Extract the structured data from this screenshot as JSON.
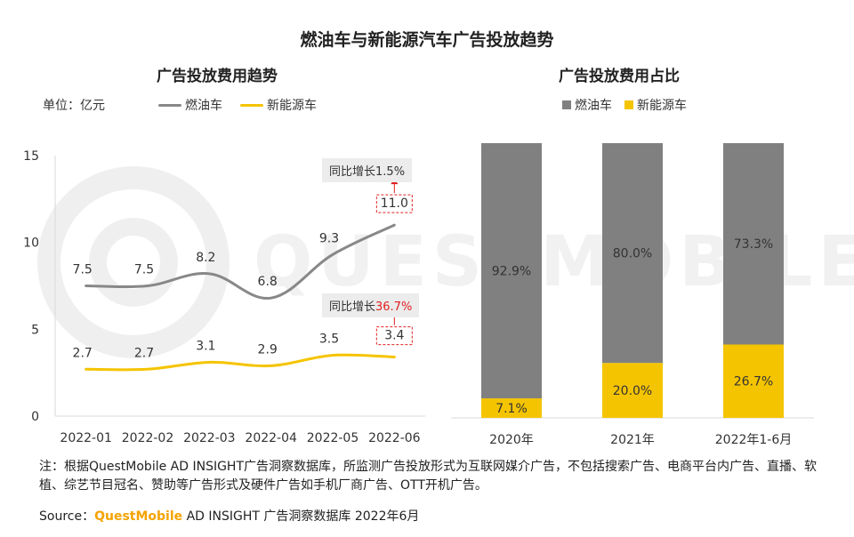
{
  "title": "燃油车与新能源汽车广告投放趋势",
  "watermark": "QUESTMOBILE",
  "left_chart": {
    "subtitle": "广告投放费用趋势",
    "unit": "单位：亿元",
    "legend": [
      "燃油车",
      "新能源车"
    ],
    "callout_fuel": {
      "prefix": "同比增长",
      "value": "1.5%"
    },
    "callout_ev": {
      "prefix": "同比增长",
      "value": "36.7%"
    }
  },
  "right_chart": {
    "subtitle": "广告投放费用占比",
    "legend": [
      "燃油车",
      "新能源车"
    ]
  },
  "chart_data": [
    {
      "type": "line",
      "title": "广告投放费用趋势",
      "ylabel": "单位：亿元",
      "categories": [
        "2022-01",
        "2022-02",
        "2022-03",
        "2022-04",
        "2022-05",
        "2022-06"
      ],
      "series": [
        {
          "name": "燃油车",
          "values": [
            7.5,
            7.5,
            8.2,
            6.8,
            9.3,
            11.0
          ],
          "labels": [
            "7.5",
            "7.5",
            "8.2",
            "6.8",
            "9.3",
            "11.0"
          ],
          "color": "#888888"
        },
        {
          "name": "新能源车",
          "values": [
            2.7,
            2.7,
            3.1,
            2.9,
            3.5,
            3.4
          ],
          "labels": [
            "2.7",
            "2.7",
            "3.1",
            "2.9",
            "3.5",
            "3.4"
          ],
          "color": "#f5c400"
        }
      ],
      "ylim": [
        0,
        15
      ],
      "yticks": [
        "0",
        "5",
        "10",
        "15"
      ]
    },
    {
      "type": "bar",
      "stacked": true,
      "title": "广告投放费用占比",
      "categories": [
        "2020年",
        "2021年",
        "2022年1-6月"
      ],
      "series": [
        {
          "name": "新能源车",
          "values": [
            7.1,
            20.0,
            26.7
          ],
          "labels": [
            "7.1%",
            "20.0%",
            "26.7%"
          ],
          "color": "#f5c400"
        },
        {
          "name": "燃油车",
          "values": [
            92.9,
            80.0,
            73.3
          ],
          "labels": [
            "92.9%",
            "80.0%",
            "73.3%"
          ],
          "color": "#808080"
        }
      ],
      "ylim": [
        0,
        100
      ]
    }
  ],
  "note": "注：根据QuestMobile AD INSIGHT广告洞察数据库，所监测广告投放形式为互联网媒介广告，不包括搜索广告、电商平台内广告、直播、软植、综艺节目冠名、赞助等广告形式及硬件广告如手机厂商广告、OTT开机广告。",
  "source": {
    "prefix": "Source：",
    "brand": "QuestMobile",
    "rest": "AD INSIGHT 广告洞察数据库 2022年6月"
  },
  "colors": {
    "fuel": "#808080",
    "fuel_line": "#888888",
    "ev": "#f5c400",
    "callout_bg": "#ececec",
    "red": "#e02020"
  }
}
